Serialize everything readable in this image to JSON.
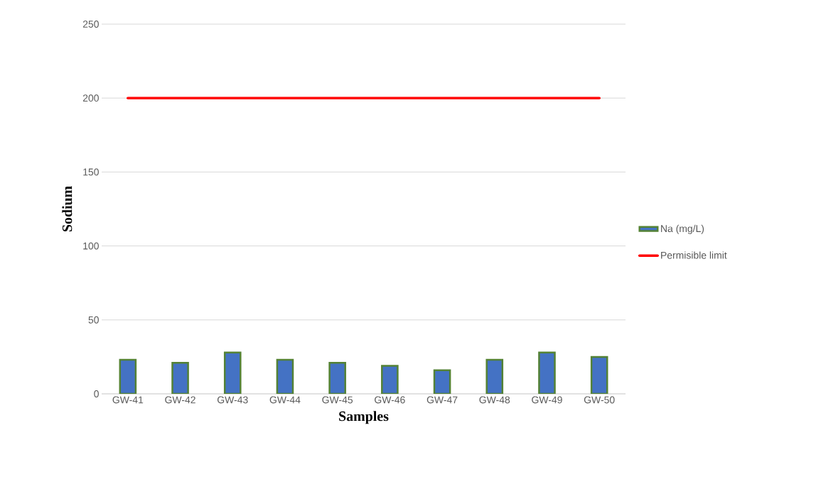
{
  "chart_data": {
    "type": "bar",
    "xlabel": "Samples",
    "ylabel": "Sodium",
    "categories": [
      "GW-41",
      "GW-42",
      "GW-43",
      "GW-44",
      "GW-45",
      "GW-46",
      "GW-47",
      "GW-48",
      "GW-49",
      "GW-50"
    ],
    "series": [
      {
        "name": "Na (mg/L)",
        "color": "#4472c4",
        "values": [
          23,
          21,
          28,
          23,
          21,
          19,
          16,
          23,
          28,
          25
        ]
      },
      {
        "name": "Permisible limit",
        "type": "line",
        "color": "#ff0000",
        "values": [
          200,
          200,
          200,
          200,
          200,
          200,
          200,
          200,
          200,
          200
        ]
      }
    ],
    "ylim": [
      0,
      250
    ],
    "yticks": [
      0,
      50,
      100,
      150,
      200,
      250
    ],
    "grid": "y",
    "legend": "right"
  }
}
